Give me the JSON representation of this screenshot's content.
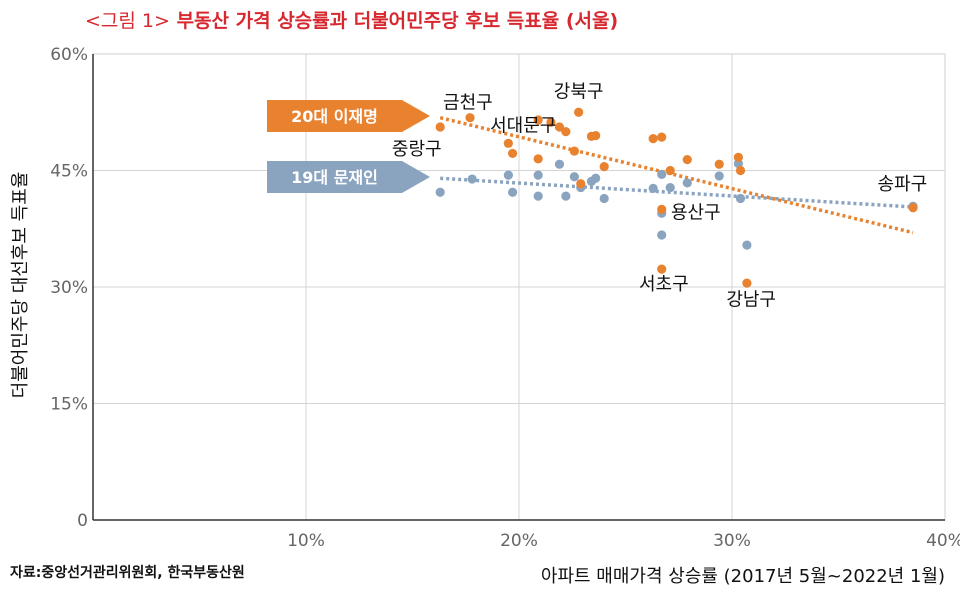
{
  "title": {
    "figure": "<그림 1>",
    "text": "부동산 가격 상승률과 더불어민주당 후보 득표율 (서울)"
  },
  "source": "자료:중앙선거관리위원회, 한국부동산원",
  "chart_data": {
    "type": "scatter",
    "xlabel": "아파트 매매가격 상승률 (2017년 5월~2022년 1월)",
    "ylabel": "더불어민주당 대선후보 득표율",
    "xlim": [
      0,
      40
    ],
    "ylim": [
      0,
      60
    ],
    "x_ticks": [
      10,
      20,
      30,
      40
    ],
    "x_tick_labels": [
      "10%",
      "20%",
      "30%",
      "40%"
    ],
    "y_ticks": [
      0,
      15,
      30,
      45,
      60
    ],
    "y_tick_labels": [
      "0",
      "15%",
      "30%",
      "45%",
      "60%"
    ],
    "grid": true,
    "colors": {
      "orange": "#e8822f",
      "blue": "#8aa4c0",
      "title": "#d7282f"
    },
    "series": [
      {
        "name": "20대 이재명",
        "color": "#e8822f",
        "points": [
          [
            16.3,
            50.6
          ],
          [
            17.7,
            51.8
          ],
          [
            19.5,
            48.5
          ],
          [
            19.7,
            47.2
          ],
          [
            20.9,
            51.5
          ],
          [
            20.9,
            46.5
          ],
          [
            21.5,
            51.2
          ],
          [
            21.9,
            50.6
          ],
          [
            22.2,
            50.0
          ],
          [
            22.6,
            47.5
          ],
          [
            22.8,
            52.5
          ],
          [
            22.9,
            43.3
          ],
          [
            23.4,
            49.4
          ],
          [
            23.6,
            49.5
          ],
          [
            24.0,
            45.5
          ],
          [
            26.3,
            49.1
          ],
          [
            26.7,
            49.3
          ],
          [
            26.7,
            40.0
          ],
          [
            26.7,
            32.3
          ],
          [
            27.1,
            45.0
          ],
          [
            27.9,
            46.4
          ],
          [
            29.4,
            45.8
          ],
          [
            30.3,
            46.7
          ],
          [
            30.4,
            45.0
          ],
          [
            30.7,
            30.5
          ],
          [
            38.5,
            40.2
          ]
        ],
        "trend": [
          [
            16.3,
            51.8
          ],
          [
            38.5,
            37.0
          ]
        ]
      },
      {
        "name": "19대 문재인",
        "color": "#8aa4c0",
        "points": [
          [
            16.3,
            42.2
          ],
          [
            17.8,
            43.9
          ],
          [
            19.5,
            44.4
          ],
          [
            19.7,
            42.2
          ],
          [
            20.9,
            44.4
          ],
          [
            20.9,
            41.7
          ],
          [
            21.9,
            45.8
          ],
          [
            22.2,
            41.7
          ],
          [
            22.6,
            44.2
          ],
          [
            22.9,
            42.8
          ],
          [
            23.4,
            43.6
          ],
          [
            23.6,
            44.0
          ],
          [
            24.0,
            41.4
          ],
          [
            26.3,
            42.7
          ],
          [
            26.7,
            44.5
          ],
          [
            26.7,
            39.5
          ],
          [
            26.7,
            36.7
          ],
          [
            27.1,
            42.8
          ],
          [
            27.9,
            43.4
          ],
          [
            29.4,
            44.3
          ],
          [
            30.3,
            45.9
          ],
          [
            30.4,
            41.4
          ],
          [
            30.7,
            35.4
          ],
          [
            38.5,
            40.4
          ]
        ],
        "trend": [
          [
            16.3,
            44.0
          ],
          [
            38.5,
            40.3
          ]
        ]
      }
    ],
    "annotations": [
      {
        "text": "금천구",
        "x": 17.6,
        "y": 53.0
      },
      {
        "text": "강북구",
        "x": 22.8,
        "y": 54.4
      },
      {
        "text": "서대문구",
        "x": 20.2,
        "y": 50.0
      },
      {
        "text": "중랑구",
        "x": 15.2,
        "y": 47.0
      },
      {
        "text": "송파구",
        "x": 38.0,
        "y": 42.5
      },
      {
        "text": "용산구",
        "x": 28.3,
        "y": 38.8
      },
      {
        "text": "서초구",
        "x": 26.8,
        "y": 29.6
      },
      {
        "text": "강남구",
        "x": 30.9,
        "y": 27.6
      }
    ]
  }
}
